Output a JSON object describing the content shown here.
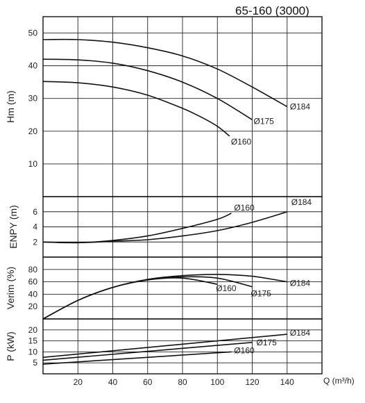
{
  "chart_data": {
    "type": "line",
    "title": "65-160 (3000)",
    "xlabel": "Q (m³/h)",
    "x_ticks": [
      "20",
      "40",
      "60",
      "80",
      "100",
      "120",
      "140"
    ],
    "xlim": [
      0,
      160
    ],
    "grid": true,
    "panels": [
      {
        "id": "head",
        "ylabel": "Hm (m)",
        "ylim": [
          0,
          55
        ],
        "y_ticks": [
          10,
          20,
          30,
          40,
          50
        ],
        "series": [
          {
            "name": "Ø184",
            "x": [
              0,
              20,
              40,
              60,
              80,
              100,
              120,
              140
            ],
            "y": [
              48,
              48,
              47.2,
              45.5,
              43,
              39,
              33.5,
              27.5
            ]
          },
          {
            "name": "Ø175",
            "x": [
              0,
              20,
              40,
              60,
              80,
              100,
              120
            ],
            "y": [
              42,
              41.8,
              40.8,
              38.5,
              35,
              30,
              23.5
            ]
          },
          {
            "name": "Ø160",
            "x": [
              0,
              20,
              40,
              60,
              80,
              90,
              100,
              107
            ],
            "y": [
              35.2,
              34.8,
              33.5,
              31,
              27,
              24.5,
              21.5,
              18.5
            ]
          }
        ]
      },
      {
        "id": "npsh",
        "ylabel": "ENPY (m)",
        "ylim": [
          0,
          8
        ],
        "y_ticks": [
          2,
          4,
          6
        ],
        "series": [
          {
            "name": "Ø160",
            "x": [
              0,
              20,
              40,
              60,
              80,
              100,
              108
            ],
            "y": [
              2,
              1.9,
              2.2,
              2.8,
              3.8,
              5.0,
              5.8
            ]
          },
          {
            "name": "Ø184",
            "x": [
              0,
              20,
              40,
              60,
              80,
              100,
              120,
              140
            ],
            "y": [
              2,
              1.9,
              2.1,
              2.3,
              2.8,
              3.5,
              4.6,
              6.0
            ]
          }
        ]
      },
      {
        "id": "eff",
        "ylabel": "Verim (%)",
        "ylim": [
          0,
          100
        ],
        "y_ticks": [
          20,
          40,
          60,
          80
        ],
        "series": [
          {
            "name": "Ø184",
            "x": [
              0,
              20,
              40,
              60,
              80,
              100,
              120,
              140
            ],
            "y": [
              0,
              30,
              51,
              64,
              70,
              72,
              69,
              60
            ]
          },
          {
            "name": "Ø175",
            "x": [
              0,
              20,
              40,
              60,
              80,
              100,
              120
            ],
            "y": [
              0,
              30,
              51,
              63.5,
              68,
              66,
              52
            ]
          },
          {
            "name": "Ø160",
            "x": [
              0,
              20,
              40,
              60,
              80,
              100
            ],
            "y": [
              0,
              30,
              51,
              63,
              66,
              56
            ]
          }
        ]
      },
      {
        "id": "power",
        "ylabel": "P (kW)",
        "ylim": [
          0,
          25
        ],
        "y_ticks": [
          5,
          10,
          15,
          20
        ],
        "series": [
          {
            "name": "Ø184",
            "x": [
              0,
              140
            ],
            "y": [
              7.5,
              18
            ]
          },
          {
            "name": "Ø175",
            "x": [
              0,
              120
            ],
            "y": [
              6.2,
              14.3
            ]
          },
          {
            "name": "Ø160",
            "x": [
              0,
              108
            ],
            "y": [
              4.4,
              10
            ]
          }
        ]
      }
    ]
  }
}
